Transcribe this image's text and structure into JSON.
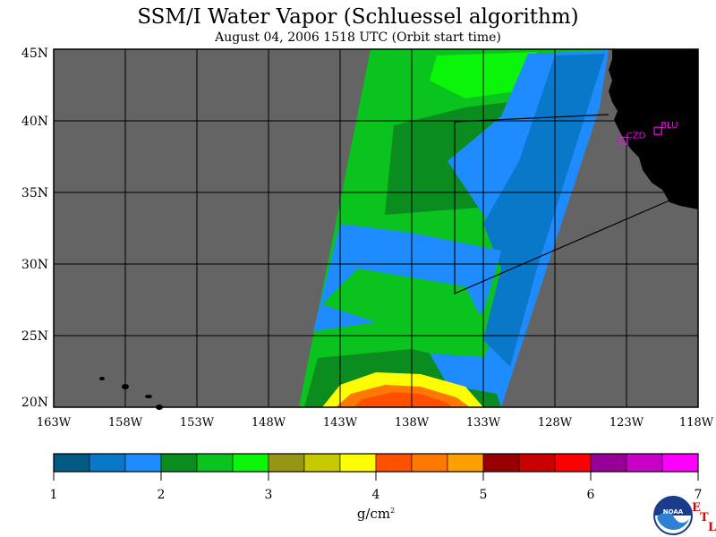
{
  "title": "SSM/I Water Vapor (Schluessel algorithm)",
  "subtitle": "August 04, 2006  1518 UTC  (Orbit start time)",
  "lat_labels": [
    "45N",
    "40N",
    "35N",
    "30N",
    "25N",
    "20N"
  ],
  "lon_labels": [
    "163W",
    "158W",
    "153W",
    "148W",
    "143W",
    "138W",
    "133W",
    "128W",
    "123W",
    "118W"
  ],
  "stations": [
    {
      "id": "CZD",
      "lat": 38.6,
      "lon": -123.2
    },
    {
      "id": "BLU",
      "lat": 39.3,
      "lon": -120.8
    }
  ],
  "colorbar": {
    "ticks": [
      "1",
      "2",
      "3",
      "4",
      "5",
      "6",
      "7"
    ],
    "units": "g/cm",
    "units_sup": "2",
    "colors": [
      "#005a82",
      "#0a78c8",
      "#1e8cff",
      "#0a8c1e",
      "#0ac31e",
      "#0af50a",
      "#969614",
      "#c8c800",
      "#ffff00",
      "#ff5000",
      "#ff7800",
      "#ffa000",
      "#960000",
      "#c80000",
      "#ff0000",
      "#960096",
      "#c800c8",
      "#ff00ff"
    ]
  },
  "map": {
    "lat_range": [
      20,
      45
    ],
    "lon_range": [
      -163,
      -118
    ],
    "background": "#646464",
    "land": "#000000",
    "station_color": "#ff00ff"
  },
  "logo": {
    "text": "NOAA",
    "etl": [
      "E",
      "T",
      "L"
    ]
  }
}
